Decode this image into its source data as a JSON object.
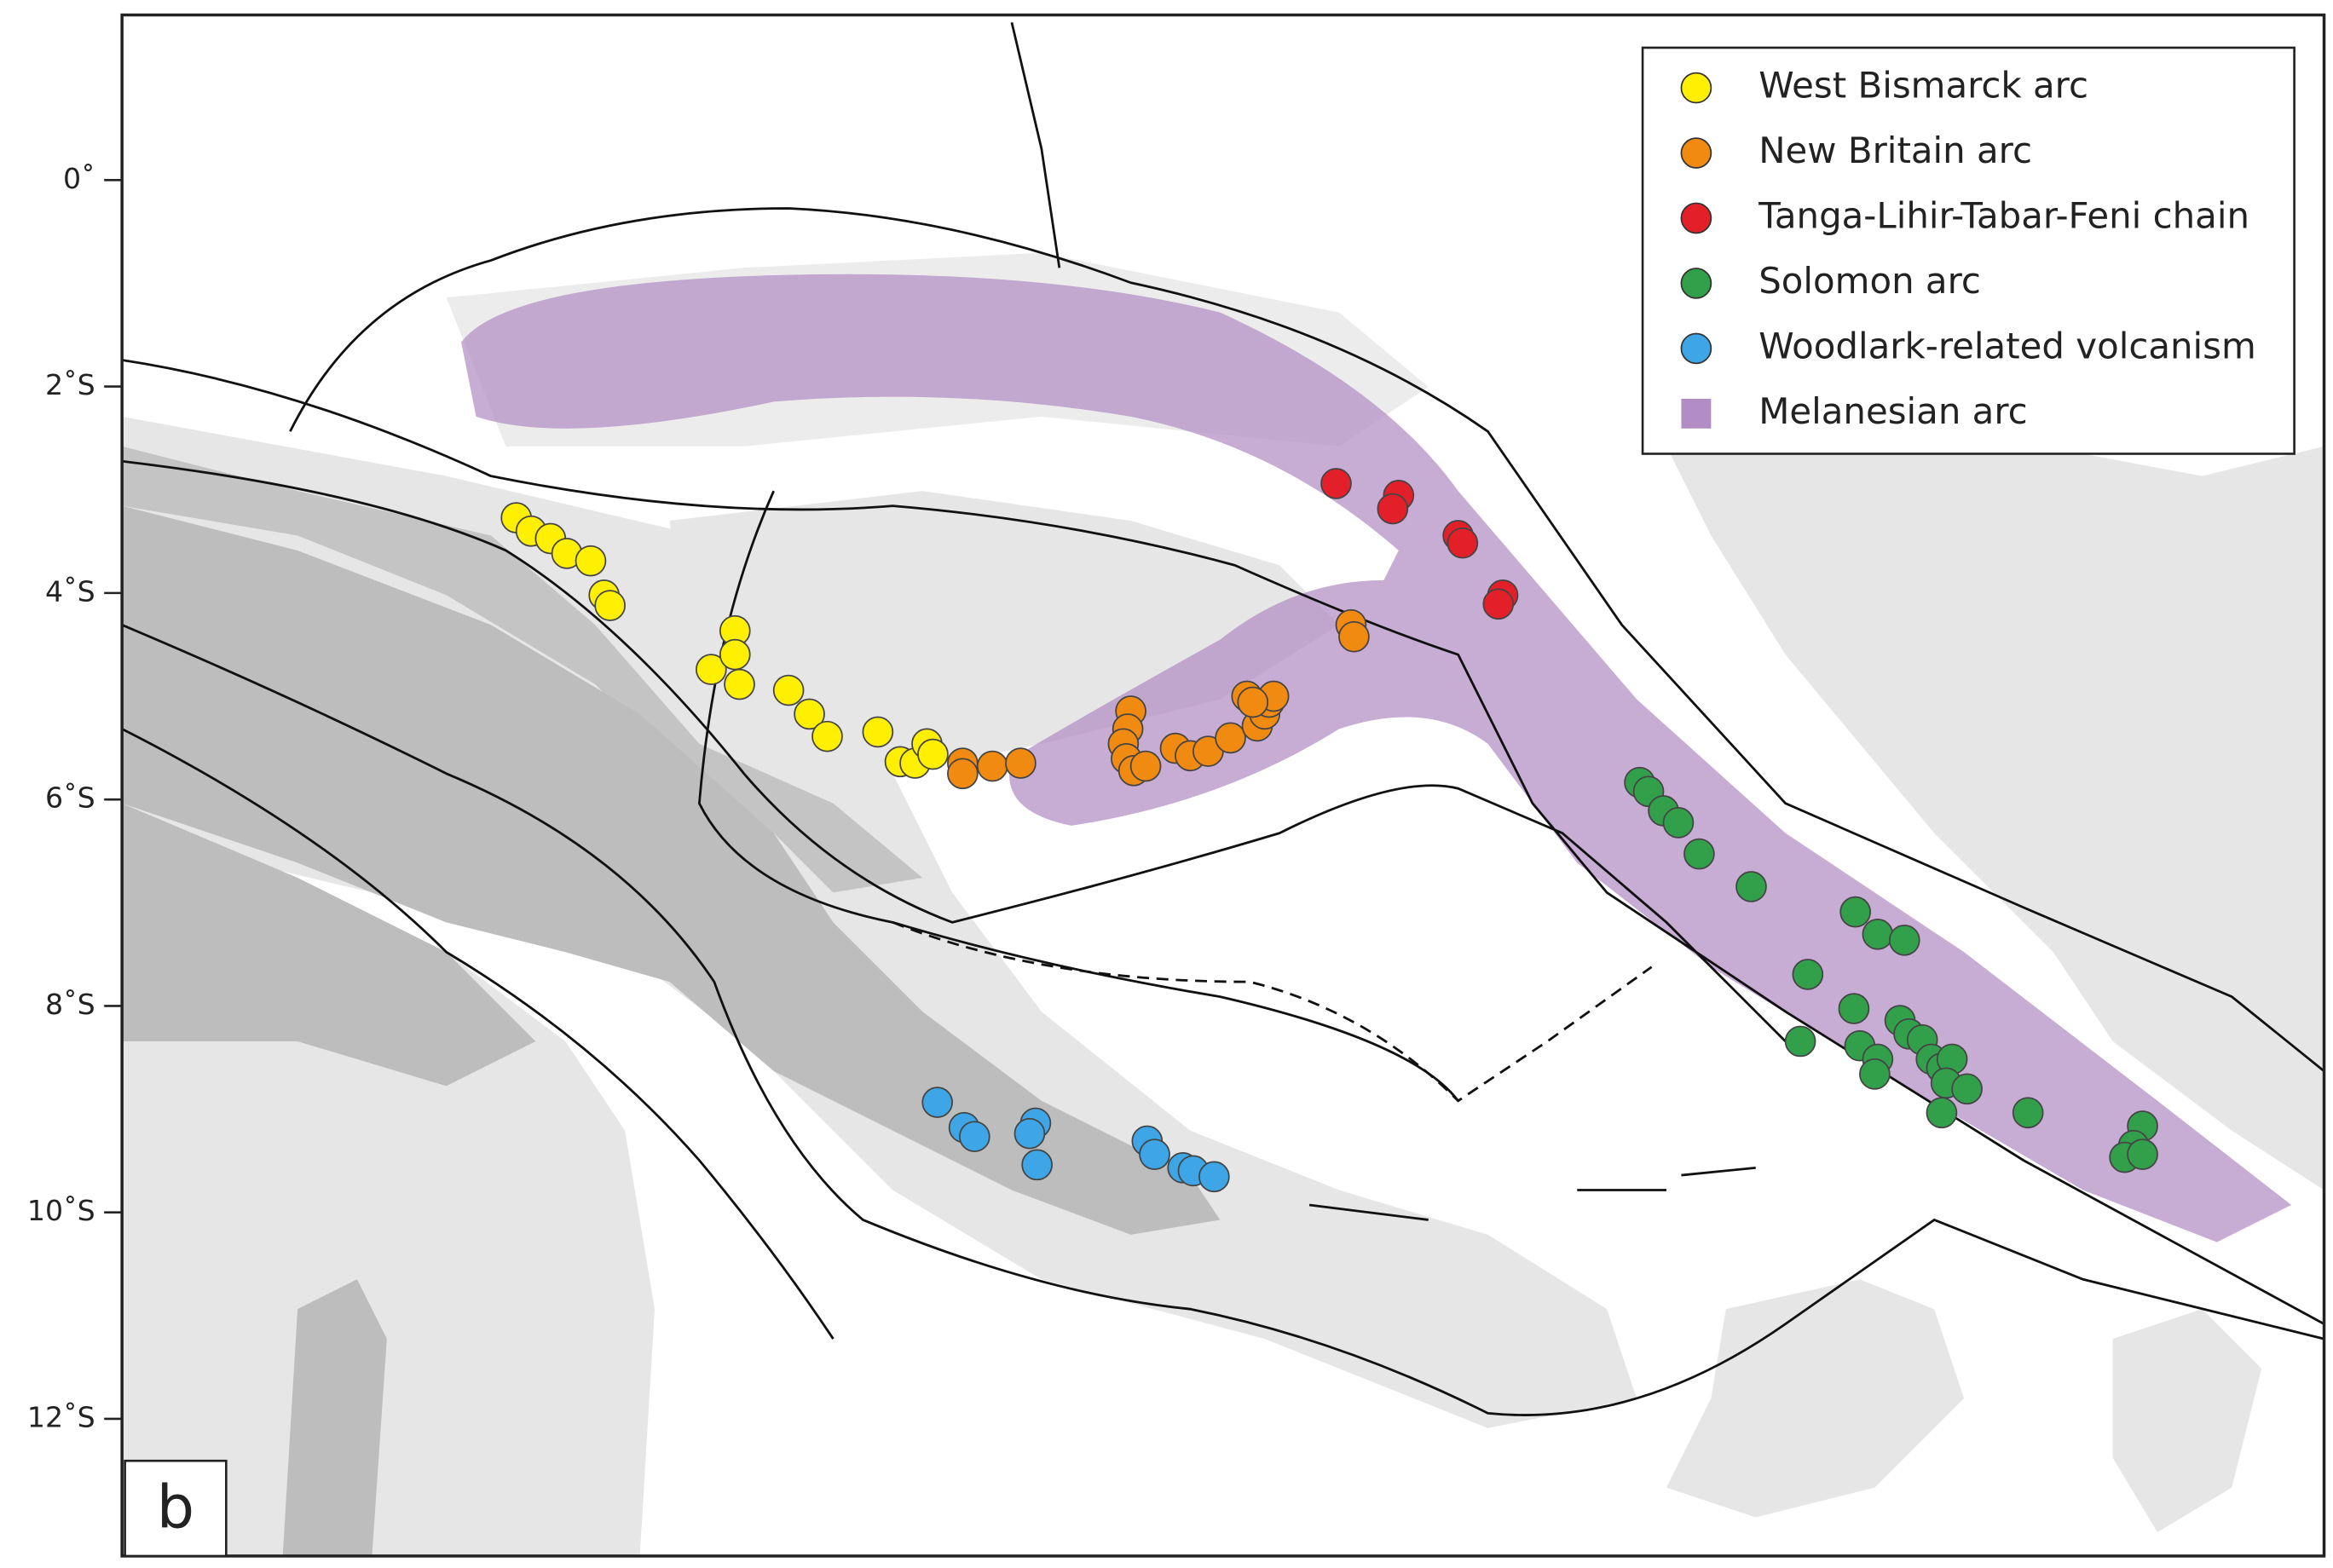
{
  "map": {
    "lat_labels": [
      "0˚",
      "2˚S",
      "4˚S",
      "6˚S",
      "8˚S",
      "10˚S",
      "12˚S"
    ],
    "legend": [
      {
        "label": "West Bismarck arc",
        "color": "#ffef00"
      },
      {
        "label": "New Britain arc",
        "color": "#f08a10"
      },
      {
        "label": "Tanga-Lihir-Tabar-Feni chain",
        "color": "#e3202a"
      },
      {
        "label": "Solomon arc",
        "color": "#32a04a"
      },
      {
        "label": "Woodlark-related volcanism",
        "color": "#3ea6e6"
      },
      {
        "label": "Melanesian arc",
        "color": "#b28cc4"
      }
    ],
    "panel_label": "b"
  }
}
